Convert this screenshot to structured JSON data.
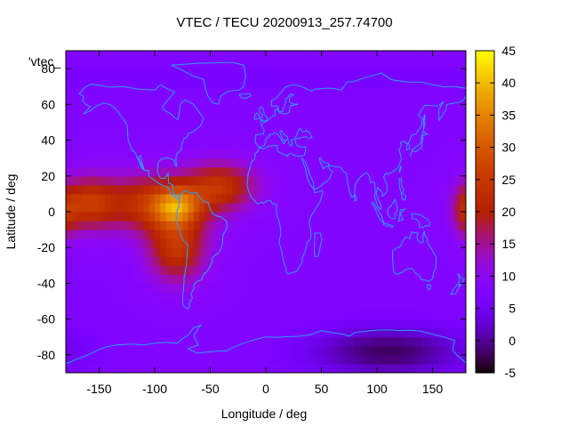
{
  "chart_data": {
    "type": "heatmap",
    "title": "VTEC / TECU 20200913_257.74700",
    "xlabel": "Longitude / deg",
    "ylabel": "Latitude / deg",
    "xlim": [
      -180,
      180
    ],
    "ylim": [
      -90,
      90
    ],
    "x_ticks": [
      -150,
      -100,
      -50,
      0,
      50,
      100,
      150
    ],
    "y_ticks": [
      -80,
      -60,
      -40,
      -20,
      0,
      20,
      40,
      60,
      80
    ],
    "colorbar": {
      "range": [
        -5,
        45
      ],
      "ticks": [
        -5,
        0,
        5,
        10,
        15,
        20,
        25,
        30,
        35,
        40,
        45
      ],
      "palette": "gnuplot-pm3d-traditional"
    },
    "legend_label": "'vtec_",
    "colors": {
      "coastline": "#2f9cff",
      "frame": "#000000"
    },
    "features": {
      "background_vtec": 8,
      "equatorial_peak": {
        "lon": -80,
        "lat": 3,
        "vtec": 40
      },
      "american_crest_north": {
        "lon": -100,
        "lat": 5,
        "vtec": 25
      },
      "american_crest_south": {
        "lon": -80,
        "lat": -20,
        "vtec": 24
      },
      "atlantic_lobe": {
        "lon": -40,
        "lat": 15,
        "vtec": 22
      },
      "pacific_lobe": {
        "lon": -160,
        "lat": 5,
        "vtec": 22
      },
      "eastern_edge_lobe": {
        "lon": 180,
        "lat": 0,
        "vtec": 18
      },
      "southern_low": {
        "lon": 110,
        "lat": -78,
        "vtec": -2
      }
    }
  }
}
